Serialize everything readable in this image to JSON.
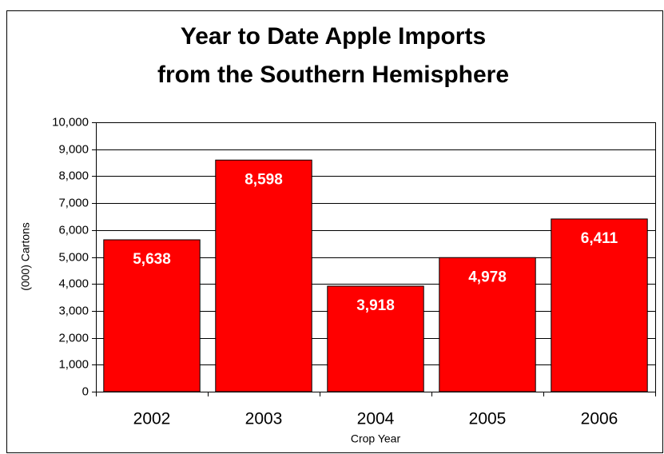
{
  "chart_data": {
    "type": "bar",
    "title": [
      "Year to Date Apple Imports",
      "from the Southern Hemisphere"
    ],
    "x_label": "Crop Year",
    "y_label": "(000) Cartons",
    "categories": [
      "2002",
      "2003",
      "2004",
      "2005",
      "2006"
    ],
    "values": [
      5638,
      8598,
      3918,
      4978,
      6411
    ],
    "value_labels": [
      "5,638",
      "8,598",
      "3,918",
      "4,978",
      "6,411"
    ],
    "color": "#ff0000",
    "ylim": [
      0,
      10000
    ],
    "yticks": [
      0,
      {
        "value": 1000,
        "label": "1,000"
      },
      {
        "value": 2000,
        "label": "2,000"
      },
      {
        "value": 3000,
        "label": "3,000"
      },
      {
        "value": 4000,
        "label": "4,000"
      },
      {
        "value": 5000,
        "label": "5,000"
      },
      {
        "value": 6000,
        "label": "6,000"
      },
      {
        "value": 7000,
        "label": "7,000"
      },
      {
        "value": 8000,
        "label": "8,000"
      },
      {
        "value": 9000,
        "label": "9,000"
      },
      {
        "value": 10000,
        "label": "10,000"
      }
    ],
    "grid": true
  }
}
